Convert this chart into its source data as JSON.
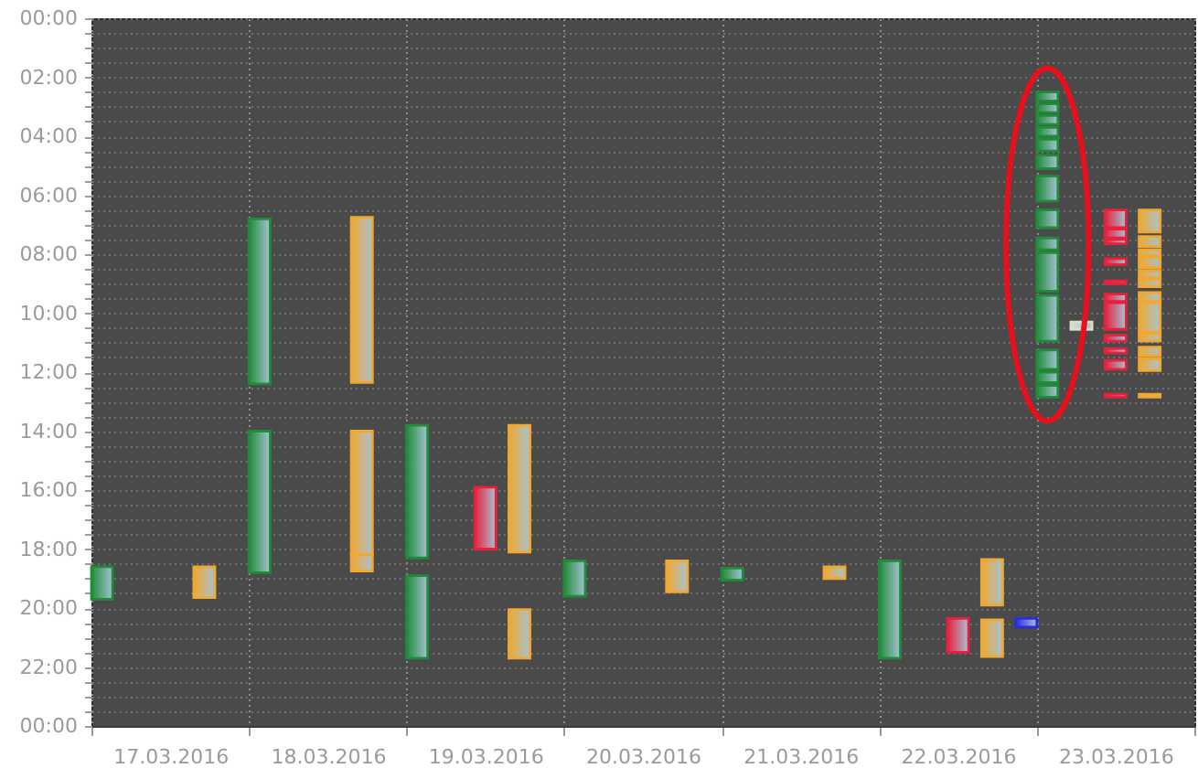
{
  "chart_data": {
    "type": "bar",
    "categories": [
      "17.03.2016",
      "18.03.2016",
      "19.03.2016",
      "20.03.2016",
      "21.03.2016",
      "22.03.2016",
      "23.03.2016"
    ],
    "ylim": [
      24,
      0
    ],
    "yticks": [
      {
        "value": 0,
        "label": "00:00"
      },
      {
        "value": 0.5,
        "label": null
      },
      {
        "value": 1,
        "label": null
      },
      {
        "value": 1.5,
        "label": null
      },
      {
        "value": 2,
        "label": "02:00"
      },
      {
        "value": 2.5,
        "label": null
      },
      {
        "value": 3,
        "label": null
      },
      {
        "value": 3.5,
        "label": null
      },
      {
        "value": 4,
        "label": "04:00"
      },
      {
        "value": 4.5,
        "label": null
      },
      {
        "value": 5,
        "label": null
      },
      {
        "value": 5.5,
        "label": null
      },
      {
        "value": 6,
        "label": "06:00"
      },
      {
        "value": 6.5,
        "label": null
      },
      {
        "value": 7,
        "label": null
      },
      {
        "value": 7.5,
        "label": null
      },
      {
        "value": 8,
        "label": "08:00"
      },
      {
        "value": 8.5,
        "label": null
      },
      {
        "value": 9,
        "label": null
      },
      {
        "value": 9.5,
        "label": null
      },
      {
        "value": 10,
        "label": "10:00"
      },
      {
        "value": 10.5,
        "label": null
      },
      {
        "value": 11,
        "label": null
      },
      {
        "value": 11.5,
        "label": null
      },
      {
        "value": 12,
        "label": "12:00"
      },
      {
        "value": 12.5,
        "label": null
      },
      {
        "value": 13,
        "label": null
      },
      {
        "value": 13.5,
        "label": null
      },
      {
        "value": 14,
        "label": "14:00"
      },
      {
        "value": 14.5,
        "label": null
      },
      {
        "value": 15,
        "label": null
      },
      {
        "value": 15.5,
        "label": null
      },
      {
        "value": 16,
        "label": "16:00"
      },
      {
        "value": 16.5,
        "label": null
      },
      {
        "value": 17,
        "label": null
      },
      {
        "value": 17.5,
        "label": null
      },
      {
        "value": 18,
        "label": "18:00"
      },
      {
        "value": 18.5,
        "label": null
      },
      {
        "value": 19,
        "label": null
      },
      {
        "value": 19.5,
        "label": null
      },
      {
        "value": 20,
        "label": "20:00"
      },
      {
        "value": 20.5,
        "label": null
      },
      {
        "value": 21,
        "label": null
      },
      {
        "value": 21.5,
        "label": null
      },
      {
        "value": 22,
        "label": "22:00"
      },
      {
        "value": 22.5,
        "label": null
      },
      {
        "value": 23,
        "label": null
      },
      {
        "value": 23.5,
        "label": null
      },
      {
        "value": 24,
        "label": "00:00"
      }
    ],
    "grid": true,
    "series": [
      {
        "color": "#208c3a",
        "base": [
          18.6,
          6.8,
          13.8,
          18.4,
          18.65,
          18.4,
          2.5
        ],
        "values": [
          1.1,
          5.6,
          4.5,
          1.2,
          0.4,
          3.3,
          0.3
        ]
      },
      {
        "color": "#208c3a",
        "base": [
          null,
          14.0,
          18.9,
          null,
          null,
          null,
          2.9
        ],
        "values": [
          null,
          4.8,
          2.8,
          null,
          null,
          null,
          0.3
        ]
      },
      {
        "color": "#208c3a",
        "base": [
          null,
          null,
          null,
          null,
          null,
          null,
          3.3
        ],
        "values": [
          null,
          null,
          null,
          null,
          null,
          null,
          0.3
        ]
      },
      {
        "color": "#208c3a",
        "base": [
          null,
          null,
          null,
          null,
          null,
          null,
          3.7
        ],
        "values": [
          null,
          null,
          null,
          null,
          null,
          null,
          0.3
        ]
      },
      {
        "color": "#208c3a",
        "base": [
          null,
          null,
          null,
          null,
          null,
          null,
          4.1
        ],
        "values": [
          null,
          null,
          null,
          null,
          null,
          null,
          0.4
        ]
      },
      {
        "color": "#208c3a",
        "base": [
          null,
          null,
          null,
          null,
          null,
          null,
          4.65
        ],
        "values": [
          null,
          null,
          null,
          null,
          null,
          null,
          0.45
        ]
      },
      {
        "color": "#208c3a",
        "base": [
          null,
          null,
          null,
          null,
          null,
          null,
          5.35
        ],
        "values": [
          null,
          null,
          null,
          null,
          null,
          null,
          0.85
        ]
      },
      {
        "color": "#208c3a",
        "base": [
          null,
          null,
          null,
          null,
          null,
          null,
          6.5
        ],
        "values": [
          null,
          null,
          null,
          null,
          null,
          null,
          0.6
        ]
      },
      {
        "color": "#208c3a",
        "base": [
          null,
          null,
          null,
          null,
          null,
          null,
          7.45
        ],
        "values": [
          null,
          null,
          null,
          null,
          null,
          null,
          0.4
        ]
      },
      {
        "color": "#208c3a",
        "base": [
          null,
          null,
          null,
          null,
          null,
          null,
          7.95
        ],
        "values": [
          null,
          null,
          null,
          null,
          null,
          null,
          1.3
        ]
      },
      {
        "color": "#208c3a",
        "base": [
          null,
          null,
          null,
          null,
          null,
          null,
          9.4
        ],
        "values": [
          null,
          null,
          null,
          null,
          null,
          null,
          1.55
        ]
      },
      {
        "color": "#208c3a",
        "base": [
          null,
          null,
          null,
          null,
          null,
          null,
          11.25
        ],
        "values": [
          null,
          null,
          null,
          null,
          null,
          null,
          0.65
        ]
      },
      {
        "color": "#208c3a",
        "base": [
          null,
          null,
          null,
          null,
          null,
          null,
          12.0
        ],
        "values": [
          null,
          null,
          null,
          null,
          null,
          null,
          0.35
        ]
      },
      {
        "color": "#208c3a",
        "base": [
          null,
          null,
          null,
          null,
          null,
          null,
          12.45
        ],
        "values": [
          null,
          null,
          null,
          null,
          null,
          null,
          0.4
        ]
      },
      {
        "color": "#d8dcc8",
        "base": [
          null,
          null,
          null,
          null,
          null,
          null,
          10.3
        ],
        "values": [
          null,
          null,
          null,
          null,
          null,
          null,
          0.25
        ]
      },
      {
        "color": "#e8203c",
        "base": [
          null,
          null,
          15.9,
          null,
          null,
          20.35,
          6.5
        ],
        "values": [
          null,
          null,
          2.1,
          null,
          null,
          1.15,
          0.6
        ]
      },
      {
        "color": "#e8203c",
        "base": [
          null,
          null,
          null,
          null,
          null,
          null,
          7.15
        ],
        "values": [
          null,
          null,
          null,
          null,
          null,
          null,
          0.3
        ]
      },
      {
        "color": "#e8203c",
        "base": [
          null,
          null,
          null,
          null,
          null,
          null,
          7.5
        ],
        "values": [
          null,
          null,
          null,
          null,
          null,
          null,
          0.15
        ]
      },
      {
        "color": "#e8203c",
        "base": [
          null,
          null,
          null,
          null,
          null,
          null,
          8.15
        ],
        "values": [
          null,
          null,
          null,
          null,
          null,
          null,
          0.2
        ]
      },
      {
        "color": "#e8203c",
        "base": [
          null,
          null,
          null,
          null,
          null,
          null,
          8.9
        ],
        "values": [
          null,
          null,
          null,
          null,
          null,
          null,
          0.1
        ]
      },
      {
        "color": "#e8203c",
        "base": [
          null,
          null,
          null,
          null,
          null,
          null,
          9.35
        ],
        "values": [
          null,
          null,
          null,
          null,
          null,
          null,
          0.25
        ]
      },
      {
        "color": "#e8203c",
        "base": [
          null,
          null,
          null,
          null,
          null,
          null,
          9.65
        ],
        "values": [
          null,
          null,
          null,
          null,
          null,
          null,
          0.9
        ]
      },
      {
        "color": "#e8203c",
        "base": [
          null,
          null,
          null,
          null,
          null,
          null,
          10.75
        ],
        "values": [
          null,
          null,
          null,
          null,
          null,
          null,
          0.2
        ]
      },
      {
        "color": "#e8203c",
        "base": [
          null,
          null,
          null,
          null,
          null,
          null,
          11.2
        ],
        "values": [
          null,
          null,
          null,
          null,
          null,
          null,
          0.15
        ]
      },
      {
        "color": "#e8203c",
        "base": [
          null,
          null,
          null,
          null,
          null,
          null,
          11.6
        ],
        "values": [
          null,
          null,
          null,
          null,
          null,
          null,
          0.3
        ]
      },
      {
        "color": "#e8203c",
        "base": [
          null,
          null,
          null,
          null,
          null,
          null,
          12.75
        ],
        "values": [
          null,
          null,
          null,
          null,
          null,
          null,
          0.1
        ]
      },
      {
        "color": "#f0a830",
        "base": [
          18.6,
          6.75,
          13.8,
          18.4,
          18.6,
          18.35,
          6.5
        ],
        "values": [
          1.05,
          5.6,
          4.3,
          1.05,
          0.4,
          1.55,
          0.75
        ]
      },
      {
        "color": "#f0a830",
        "base": [
          null,
          14.0,
          20.05,
          null,
          null,
          20.4,
          7.4
        ],
        "values": [
          null,
          4.2,
          1.65,
          null,
          null,
          1.25,
          0.35
        ]
      },
      {
        "color": "#f0a830",
        "base": [
          null,
          18.2,
          null,
          null,
          null,
          null,
          7.85
        ],
        "values": [
          null,
          0.55,
          null,
          null,
          null,
          null,
          0.2
        ]
      },
      {
        "color": "#f0a830",
        "base": [
          null,
          null,
          null,
          null,
          null,
          null,
          8.1
        ],
        "values": [
          null,
          null,
          null,
          null,
          null,
          null,
          0.35
        ]
      },
      {
        "color": "#f0a830",
        "base": [
          null,
          null,
          null,
          null,
          null,
          null,
          8.55
        ],
        "values": [
          null,
          null,
          null,
          null,
          null,
          null,
          0.25
        ]
      },
      {
        "color": "#f0a830",
        "base": [
          null,
          null,
          null,
          null,
          null,
          null,
          8.85
        ],
        "values": [
          null,
          null,
          null,
          null,
          null,
          null,
          0.25
        ]
      },
      {
        "color": "#f0a830",
        "base": [
          null,
          null,
          null,
          null,
          null,
          null,
          9.3
        ],
        "values": [
          null,
          null,
          null,
          null,
          null,
          null,
          0.3
        ]
      },
      {
        "color": "#f0a830",
        "base": [
          null,
          null,
          null,
          null,
          null,
          null,
          9.65
        ],
        "values": [
          null,
          null,
          null,
          null,
          null,
          null,
          1.0
        ]
      },
      {
        "color": "#f0a830",
        "base": [
          null,
          null,
          null,
          null,
          null,
          null,
          10.7
        ],
        "values": [
          null,
          null,
          null,
          null,
          null,
          null,
          0.25
        ]
      },
      {
        "color": "#f0a830",
        "base": [
          null,
          null,
          null,
          null,
          null,
          null,
          11.15
        ],
        "values": [
          null,
          null,
          null,
          null,
          null,
          null,
          0.3
        ]
      },
      {
        "color": "#f0a830",
        "base": [
          null,
          null,
          null,
          null,
          null,
          null,
          11.55
        ],
        "values": [
          null,
          null,
          null,
          null,
          null,
          null,
          0.4
        ]
      },
      {
        "color": "#f0a830",
        "base": [
          null,
          null,
          null,
          null,
          null,
          null,
          12.75
        ],
        "values": [
          null,
          null,
          null,
          null,
          null,
          null,
          0.1
        ]
      },
      {
        "color": "#2b2be0",
        "base": [
          null,
          null,
          null,
          null,
          null,
          20.35,
          null
        ],
        "values": [
          null,
          null,
          null,
          null,
          null,
          0.3,
          null
        ]
      }
    ]
  }
}
